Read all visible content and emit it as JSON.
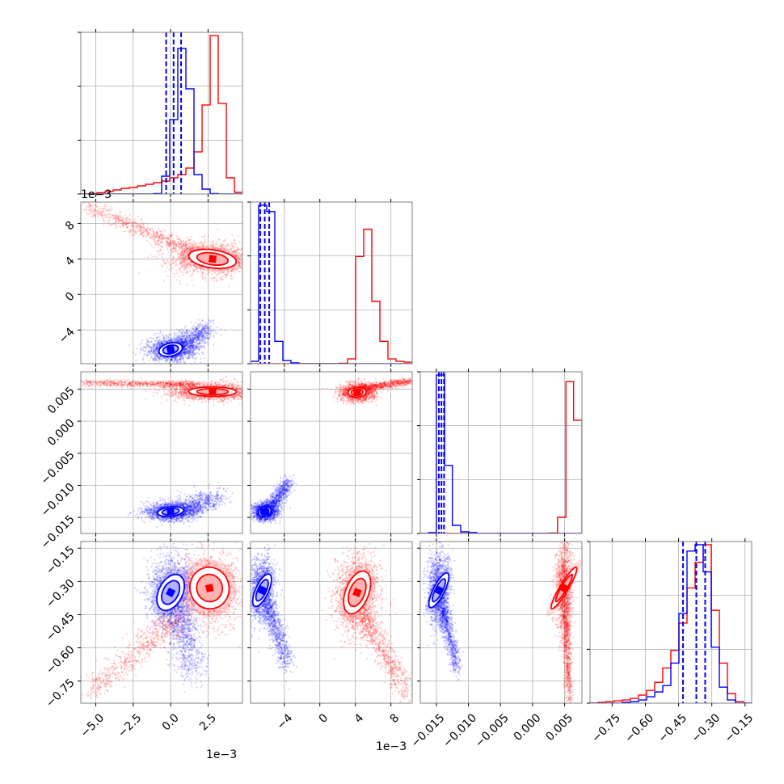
{
  "colors": {
    "series_a": "#0000ff",
    "series_b": "#ff0000",
    "grid": "#b0b0b0",
    "frame": "#808080"
  },
  "chart_data": {
    "type": "corner",
    "grid": true,
    "series": [
      {
        "color": "#0000ff",
        "param_means": [
          0.0002,
          -0.0062,
          -0.0142,
          -0.35
        ],
        "quantiles": [
          [
            -0.0003,
            0.0002,
            0.0007
          ],
          [
            -0.0067,
            -0.0062,
            -0.0057
          ],
          [
            -0.0146,
            -0.0142,
            -0.0138
          ],
          [
            -0.43,
            -0.37,
            -0.33
          ]
        ]
      },
      {
        "color": "#ff0000",
        "param_means": [
          0.0026,
          0.0041,
          0.0044,
          -0.33
        ],
        "quantiles": []
      }
    ],
    "parameters": [
      {
        "axis_index": 0,
        "range": [
          -0.006,
          0.0048
        ],
        "ticks": [
          -0.005,
          -0.0025,
          0.0,
          0.0025
        ],
        "tick_labels": [
          "−5.0",
          "−2.5",
          "0.0",
          "2.5"
        ],
        "offset_label": "1e−3",
        "histogram": {
          "bin_edges": [
            -0.006,
            -0.00546,
            -0.00492,
            -0.00438,
            -0.00384,
            -0.0033,
            -0.00276,
            -0.00222,
            -0.00168,
            -0.00114,
            -0.0006,
            -6e-05,
            0.00048,
            0.00102,
            0.00156,
            0.0021,
            0.00264,
            0.00318,
            0.00372,
            0.00426,
            0.0048
          ],
          "counts_a": [
            0,
            0,
            0,
            0,
            0,
            0,
            0,
            0,
            0,
            0.003,
            0.11,
            0.46,
            0.9,
            0.65,
            0.12,
            0.03,
            0.003,
            0,
            0,
            0
          ],
          "counts_b": [
            0,
            0.003,
            0.008,
            0.015,
            0.025,
            0.035,
            0.04,
            0.05,
            0.06,
            0.07,
            0.08,
            0.1,
            0.12,
            0.16,
            0.26,
            0.55,
            0.98,
            0.56,
            0.1,
            0.01
          ]
        }
      },
      {
        "axis_index": 1,
        "range": [
          -0.0078,
          0.0104
        ],
        "ticks": [
          -0.004,
          0.0,
          0.004,
          0.008
        ],
        "tick_labels": [
          "−4",
          "0",
          "4",
          "8"
        ],
        "offset_label": "1e−3",
        "histogram": {
          "bin_edges": [
            -0.0078,
            -0.00689,
            -0.00598,
            -0.00507,
            -0.00416,
            -0.00325,
            -0.00234,
            -0.00143,
            -0.00052,
            0.00039,
            0.0013,
            0.00221,
            0.00312,
            0.00403,
            0.00494,
            0.00585,
            0.00676,
            0.00767,
            0.00858,
            0.00949,
            0.0104
          ],
          "counts_a": [
            0.015,
            0.99,
            0.95,
            0.14,
            0.02,
            0.005,
            0,
            0,
            0,
            0,
            0,
            0,
            0,
            0,
            0,
            0,
            0,
            0,
            0,
            0
          ],
          "counts_b": [
            0,
            0,
            0,
            0,
            0,
            0,
            0,
            0,
            0,
            0,
            0,
            0.003,
            0.03,
            0.67,
            0.84,
            0.39,
            0.14,
            0.03,
            0.015,
            0.01
          ]
        }
      },
      {
        "axis_index": 2,
        "range": [
          -0.0175,
          0.0077
        ],
        "ticks": [
          -0.015,
          -0.01,
          -0.005,
          0.0,
          0.005
        ],
        "tick_labels": [
          "−0.015",
          "−0.010",
          "−0.005",
          "0.000",
          "0.005"
        ],
        "offset_label": "",
        "histogram": {
          "bin_edges": [
            -0.0175,
            -0.0162,
            -0.015,
            -0.0137,
            -0.0125,
            -0.0112,
            -0.0099,
            -0.0087,
            -0.0074,
            -0.0062,
            -0.0049,
            -0.0036,
            -0.0024,
            -0.0011,
            0.0001,
            0.0014,
            0.0026,
            0.0039,
            0.0052,
            0.0064,
            0.0077
          ],
          "counts_a": [
            0,
            0.005,
            0.98,
            0.42,
            0.05,
            0.01,
            0.005,
            0,
            0,
            0,
            0,
            0,
            0,
            0,
            0,
            0,
            0,
            0,
            0,
            0
          ],
          "counts_b": [
            0,
            0,
            0,
            0,
            0,
            0,
            0,
            0,
            0,
            0,
            0,
            0,
            0,
            0,
            0,
            0,
            0.003,
            0.1,
            0.94,
            0.7
          ]
        }
      },
      {
        "axis_index": 3,
        "range": [
          -0.85,
          -0.12
        ],
        "ticks": [
          -0.75,
          -0.6,
          -0.45,
          -0.3,
          -0.15
        ],
        "tick_labels": [
          "−0.75",
          "−0.60",
          "−0.45",
          "−0.30",
          "−0.15"
        ],
        "offset_label": "",
        "histogram": {
          "bin_edges": [
            -0.85,
            -0.8135,
            -0.777,
            -0.7405,
            -0.704,
            -0.6675,
            -0.631,
            -0.5945,
            -0.558,
            -0.5215,
            -0.485,
            -0.4485,
            -0.412,
            -0.3755,
            -0.339,
            -0.3025,
            -0.266,
            -0.2295,
            -0.193,
            -0.1565,
            -0.12
          ],
          "counts_a": [
            0,
            0,
            0,
            0,
            0.005,
            0.01,
            0.02,
            0.04,
            0.07,
            0.11,
            0.25,
            0.56,
            0.95,
            0.99,
            0.82,
            0.35,
            0.1,
            0.02,
            0,
            0
          ],
          "counts_b": [
            0,
            0.005,
            0.01,
            0.015,
            0.02,
            0.03,
            0.05,
            0.08,
            0.13,
            0.22,
            0.33,
            0.5,
            0.72,
            0.88,
            0.99,
            0.58,
            0.25,
            0.06,
            0.01,
            0
          ]
        }
      }
    ],
    "pairs": [
      {
        "x_param": 0,
        "y_param": 1,
        "a": {
          "center": [
            0.0,
            -0.0062
          ],
          "sd": [
            0.00055,
            0.0005
          ],
          "tail": {
            "from": [
              0.0007,
              -0.006
            ],
            "to": [
              0.0025,
              -0.0038
            ],
            "width": [
              0.0004,
              0.0006
            ]
          }
        },
        "b": {
          "center": [
            0.0028,
            0.004
          ],
          "sd": [
            0.0011,
            0.0007
          ],
          "tail": {
            "from": [
              0.002,
              0.0046
            ],
            "to": [
              -0.0055,
              0.0098
            ],
            "width": [
              0.0004,
              0.0004
            ]
          }
        }
      },
      {
        "x_param": 0,
        "y_param": 2,
        "a": {
          "center": [
            0.0,
            -0.0141
          ],
          "sd": [
            0.0006,
            0.0005
          ],
          "tail": {
            "from": [
              0.0007,
              -0.0139
            ],
            "to": [
              0.0032,
              -0.0118
            ],
            "width": [
              0.0005,
              0.0008
            ]
          }
        },
        "b": {
          "center": [
            0.0028,
            0.0046
          ],
          "sd": [
            0.0011,
            0.0005
          ],
          "tail": {
            "from": [
              0.0015,
              0.0057
            ],
            "to": [
              -0.0058,
              0.006
            ],
            "width": [
              0.0004,
              0.00025
            ]
          }
        }
      },
      {
        "x_param": 0,
        "y_param": 3,
        "a": {
          "center": [
            0.0,
            -0.35
          ],
          "sd": [
            0.00055,
            0.06
          ],
          "tail": {
            "from": [
              0.0005,
              -0.42
            ],
            "to": [
              0.0015,
              -0.72
            ],
            "width": [
              0.0005,
              0.04
            ]
          }
        },
        "b": {
          "center": [
            0.0026,
            -0.33
          ],
          "sd": [
            0.0009,
            0.065
          ],
          "tail": {
            "from": [
              0.0005,
              -0.47
            ],
            "to": [
              -0.0055,
              -0.8
            ],
            "width": [
              0.0005,
              0.03
            ]
          }
        }
      },
      {
        "x_param": 1,
        "y_param": 2,
        "a": {
          "center": [
            -0.0062,
            -0.0141
          ],
          "sd": [
            0.0005,
            0.0005
          ],
          "tail": {
            "from": [
              -0.0057,
              -0.0137
            ],
            "to": [
              -0.0035,
              -0.0095
            ],
            "width": [
              0.0004,
              0.0006
            ]
          }
        },
        "b": {
          "center": [
            0.0042,
            0.0045
          ],
          "sd": [
            0.0007,
            0.0005
          ],
          "tail": {
            "from": [
              0.0048,
              0.0052
            ],
            "to": [
              0.0102,
              0.0062
            ],
            "width": [
              0.0004,
              0.0003
            ]
          }
        }
      },
      {
        "x_param": 1,
        "y_param": 3,
        "a": {
          "center": [
            -0.0065,
            -0.34
          ],
          "sd": [
            0.0005,
            0.055
          ],
          "tail": {
            "from": [
              -0.0058,
              -0.42
            ],
            "to": [
              -0.0035,
              -0.68
            ],
            "width": [
              0.0004,
              0.035
            ]
          }
        },
        "b": {
          "center": [
            0.0042,
            -0.35
          ],
          "sd": [
            0.0009,
            0.07
          ],
          "tail": {
            "from": [
              0.005,
              -0.46
            ],
            "to": [
              0.0098,
              -0.8
            ],
            "width": [
              0.0005,
              0.035
            ]
          }
        }
      },
      {
        "x_param": 2,
        "y_param": 3,
        "a": {
          "center": [
            -0.0146,
            -0.34
          ],
          "sd": [
            0.0006,
            0.06
          ],
          "tail": {
            "from": [
              -0.014,
              -0.42
            ],
            "to": [
              -0.0117,
              -0.7
            ],
            "width": [
              0.0004,
              0.03
            ]
          }
        },
        "b": {
          "center": [
            0.0049,
            -0.33
          ],
          "sd": [
            0.00045,
            0.075
          ],
          "tail": {
            "from": [
              0.0052,
              -0.45
            ],
            "to": [
              0.0057,
              -0.84
            ],
            "width": [
              0.0003,
              0.04
            ]
          }
        }
      }
    ]
  }
}
